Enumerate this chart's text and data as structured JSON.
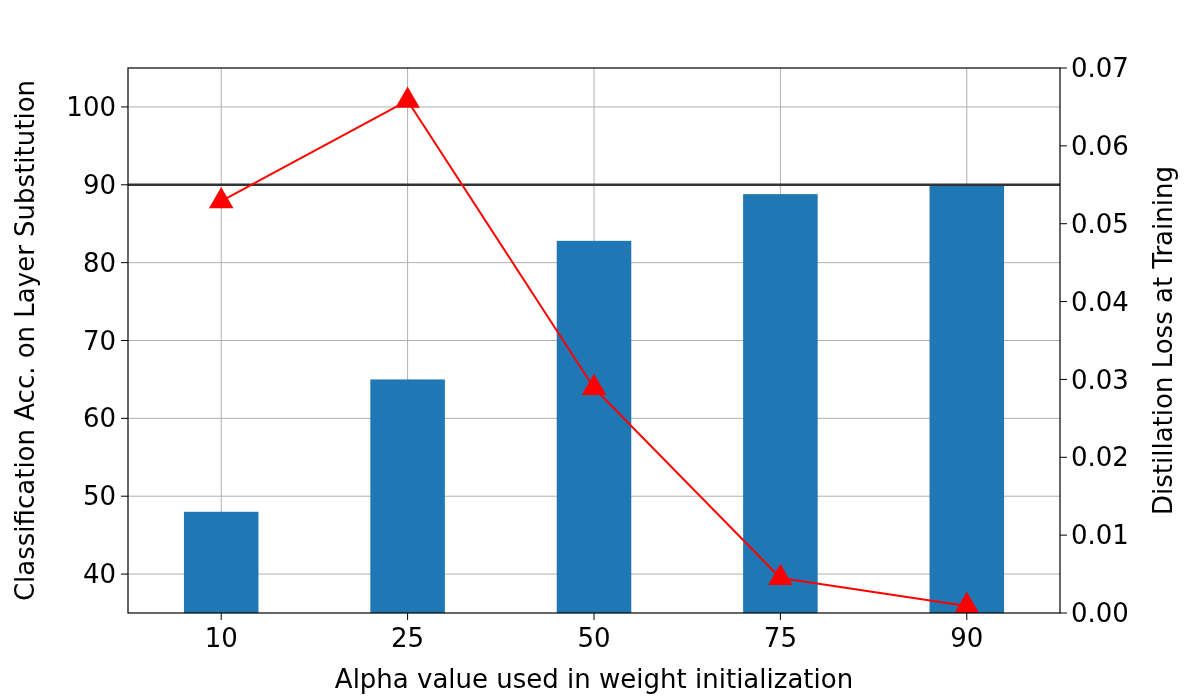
{
  "chart_data": {
    "type": "bar",
    "xlabel": "Alpha value used in weight initialization",
    "ylabel": "Classification Acc. on Layer Substitution",
    "y2label": "Distillation Loss at Training",
    "categories": [
      "10",
      "25",
      "50",
      "75",
      "90"
    ],
    "series": [
      {
        "color": "#1f77b4",
        "values": [
          48.0,
          65.0,
          82.8,
          88.8,
          90.1
        ]
      },
      {
        "type": "line",
        "axis": "y2",
        "color": "#ff0000",
        "marker": "triangle",
        "values": [
          0.0529,
          0.0658,
          0.0289,
          0.0045,
          0.0009
        ]
      }
    ],
    "ylim": [
      35,
      105
    ],
    "yticks": [
      40,
      50,
      60,
      70,
      80,
      90,
      100
    ],
    "y2lim": [
      0,
      0.07
    ],
    "y2ticks": [
      {
        "value": 0,
        "label": "0.00"
      },
      {
        "value": 0.01,
        "label": "0.01"
      },
      {
        "value": 0.02,
        "label": "0.02"
      },
      {
        "value": 0.03,
        "label": "0.03"
      },
      {
        "value": 0.04,
        "label": "0.04"
      },
      {
        "value": 0.05,
        "label": "0.05"
      },
      {
        "value": 0.06,
        "label": "0.06"
      },
      {
        "value": 0.07,
        "label": "0.07"
      }
    ],
    "ref_lines": [
      {
        "axis": "y",
        "value": 90,
        "color": "#333333"
      }
    ],
    "grid": true
  }
}
